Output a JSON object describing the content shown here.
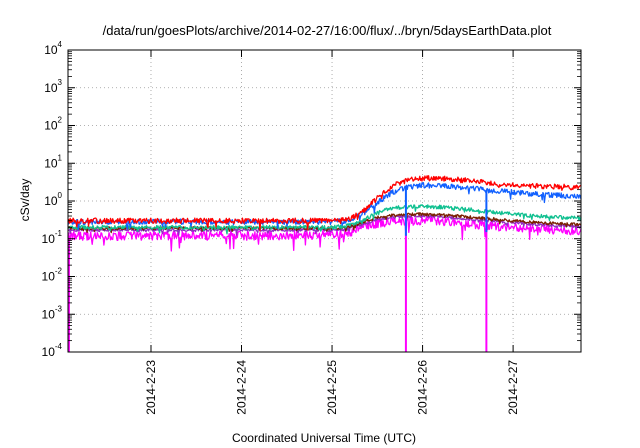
{
  "chart_data": {
    "type": "line",
    "title": "/data/run/goesPlots/archive/2014-02-27/16:00/flux/../bryn/5daysEarthData.plot",
    "xlabel": "Coordinated Universal Time (UTC)",
    "ylabel": "cSv/day",
    "xlim": [
      "2014-02-22 02:00",
      "2014-02-27 18:00"
    ],
    "x_ticks": [
      "2014-2-23",
      "2014-2-24",
      "2014-2-25",
      "2014-2-26",
      "2014-2-27"
    ],
    "ylim": [
      0.0001,
      10000
    ],
    "yscale": "log",
    "y_ticks": [
      {
        "base": "10",
        "exp": "-4"
      },
      {
        "base": "10",
        "exp": "-3"
      },
      {
        "base": "10",
        "exp": "-2"
      },
      {
        "base": "10",
        "exp": "-1"
      },
      {
        "base": "10",
        "exp": "0"
      },
      {
        "base": "10",
        "exp": "1"
      },
      {
        "base": "10",
        "exp": "2"
      },
      {
        "base": "10",
        "exp": "3"
      },
      {
        "base": "10",
        "exp": "4"
      }
    ],
    "grid": true,
    "legend": "none",
    "series": [
      {
        "color": "#ff0000",
        "noise": 0.07,
        "x": [
          "2014-02-22 02:00",
          "2014-02-22 12:00",
          "2014-02-23 00:00",
          "2014-02-23 12:00",
          "2014-02-24 00:00",
          "2014-02-24 12:00",
          "2014-02-25 00:00",
          "2014-02-25 04:00",
          "2014-02-25 08:00",
          "2014-02-25 12:00",
          "2014-02-25 16:00",
          "2014-02-25 20:00",
          "2014-02-26 00:00",
          "2014-02-26 06:00",
          "2014-02-26 12:00",
          "2014-02-26 18:00",
          "2014-02-27 00:00",
          "2014-02-27 06:00",
          "2014-02-27 12:00",
          "2014-02-27 18:00"
        ],
        "y": [
          0.3,
          0.3,
          0.3,
          0.3,
          0.3,
          0.3,
          0.3,
          0.32,
          0.5,
          1.2,
          2.5,
          3.5,
          4.0,
          3.9,
          3.5,
          3.0,
          2.7,
          2.5,
          2.4,
          2.3
        ]
      },
      {
        "color": "#1060ff",
        "noise": 0.07,
        "x": [
          "2014-02-22 02:00",
          "2014-02-22 12:00",
          "2014-02-23 00:00",
          "2014-02-23 12:00",
          "2014-02-24 00:00",
          "2014-02-24 12:00",
          "2014-02-25 00:00",
          "2014-02-25 04:00",
          "2014-02-25 08:00",
          "2014-02-25 12:00",
          "2014-02-25 16:00",
          "2014-02-25 20:00",
          "2014-02-26 00:00",
          "2014-02-26 06:00",
          "2014-02-26 12:00",
          "2014-02-26 18:00",
          "2014-02-27 00:00",
          "2014-02-27 06:00",
          "2014-02-27 12:00",
          "2014-02-27 18:00"
        ],
        "y": [
          0.28,
          0.28,
          0.28,
          0.28,
          0.28,
          0.28,
          0.28,
          0.3,
          0.45,
          0.9,
          1.7,
          2.3,
          2.6,
          2.5,
          2.2,
          1.9,
          1.7,
          1.5,
          1.4,
          1.3
        ]
      },
      {
        "color": "#10c090",
        "noise": 0.05,
        "x": [
          "2014-02-22 02:00",
          "2014-02-22 12:00",
          "2014-02-23 00:00",
          "2014-02-23 12:00",
          "2014-02-24 00:00",
          "2014-02-24 12:00",
          "2014-02-25 00:00",
          "2014-02-25 04:00",
          "2014-02-25 08:00",
          "2014-02-25 12:00",
          "2014-02-25 16:00",
          "2014-02-25 20:00",
          "2014-02-26 00:00",
          "2014-02-26 06:00",
          "2014-02-26 12:00",
          "2014-02-26 18:00",
          "2014-02-27 00:00",
          "2014-02-27 06:00",
          "2014-02-27 12:00",
          "2014-02-27 18:00"
        ],
        "y": [
          0.2,
          0.2,
          0.2,
          0.2,
          0.2,
          0.2,
          0.2,
          0.22,
          0.3,
          0.5,
          0.65,
          0.7,
          0.72,
          0.68,
          0.6,
          0.52,
          0.45,
          0.4,
          0.37,
          0.35
        ]
      },
      {
        "color": "#7a2000",
        "noise": 0.04,
        "x": [
          "2014-02-22 02:00",
          "2014-02-22 12:00",
          "2014-02-23 00:00",
          "2014-02-23 12:00",
          "2014-02-24 00:00",
          "2014-02-24 12:00",
          "2014-02-25 00:00",
          "2014-02-25 04:00",
          "2014-02-25 08:00",
          "2014-02-25 12:00",
          "2014-02-25 16:00",
          "2014-02-25 20:00",
          "2014-02-26 00:00",
          "2014-02-26 06:00",
          "2014-02-26 12:00",
          "2014-02-26 18:00",
          "2014-02-27 00:00",
          "2014-02-27 06:00",
          "2014-02-27 12:00",
          "2014-02-27 18:00"
        ],
        "y": [
          0.19,
          0.19,
          0.19,
          0.19,
          0.19,
          0.19,
          0.19,
          0.2,
          0.27,
          0.37,
          0.42,
          0.44,
          0.45,
          0.42,
          0.38,
          0.34,
          0.3,
          0.27,
          0.25,
          0.24
        ]
      },
      {
        "color": "#9030c0",
        "noise": 0.04,
        "x": [
          "2014-02-22 02:00",
          "2014-02-22 12:00",
          "2014-02-23 00:00",
          "2014-02-23 12:00",
          "2014-02-24 00:00",
          "2014-02-24 12:00",
          "2014-02-25 00:00",
          "2014-02-25 04:00",
          "2014-02-25 08:00",
          "2014-02-25 12:00",
          "2014-02-25 16:00",
          "2014-02-25 20:00",
          "2014-02-26 00:00",
          "2014-02-26 06:00",
          "2014-02-26 12:00",
          "2014-02-26 18:00",
          "2014-02-27 00:00",
          "2014-02-27 06:00",
          "2014-02-27 12:00",
          "2014-02-27 18:00"
        ],
        "y": [
          0.17,
          0.17,
          0.17,
          0.17,
          0.17,
          0.17,
          0.17,
          0.18,
          0.24,
          0.33,
          0.37,
          0.39,
          0.4,
          0.38,
          0.34,
          0.3,
          0.27,
          0.24,
          0.22,
          0.21
        ]
      },
      {
        "color": "#ff00ff",
        "noise": 0.12,
        "x": [
          "2014-02-22 02:00",
          "2014-02-22 12:00",
          "2014-02-23 00:00",
          "2014-02-23 12:00",
          "2014-02-24 00:00",
          "2014-02-24 12:00",
          "2014-02-25 00:00",
          "2014-02-25 04:00",
          "2014-02-25 08:00",
          "2014-02-25 12:00",
          "2014-02-25 16:00",
          "2014-02-25 20:00",
          "2014-02-26 00:00",
          "2014-02-26 06:00",
          "2014-02-26 12:00",
          "2014-02-26 18:00",
          "2014-02-27 00:00",
          "2014-02-27 06:00",
          "2014-02-27 12:00",
          "2014-02-27 18:00"
        ],
        "y": [
          0.12,
          0.12,
          0.12,
          0.12,
          0.12,
          0.12,
          0.13,
          0.14,
          0.2,
          0.26,
          0.29,
          0.3,
          0.3,
          0.28,
          0.25,
          0.22,
          0.2,
          0.18,
          0.17,
          0.16
        ]
      }
    ],
    "dropouts": [
      {
        "series": 5,
        "x": "2014-02-22 02:15",
        "y": 0.0001
      },
      {
        "series": 5,
        "x": "2014-02-25 19:35",
        "y": 0.0001
      },
      {
        "series": 1,
        "x": "2014-02-25 19:35",
        "y": 0.12
      },
      {
        "series": 5,
        "x": "2014-02-26 16:55",
        "y": 0.0001
      },
      {
        "series": 1,
        "x": "2014-02-26 16:55",
        "y": 0.15
      }
    ]
  }
}
